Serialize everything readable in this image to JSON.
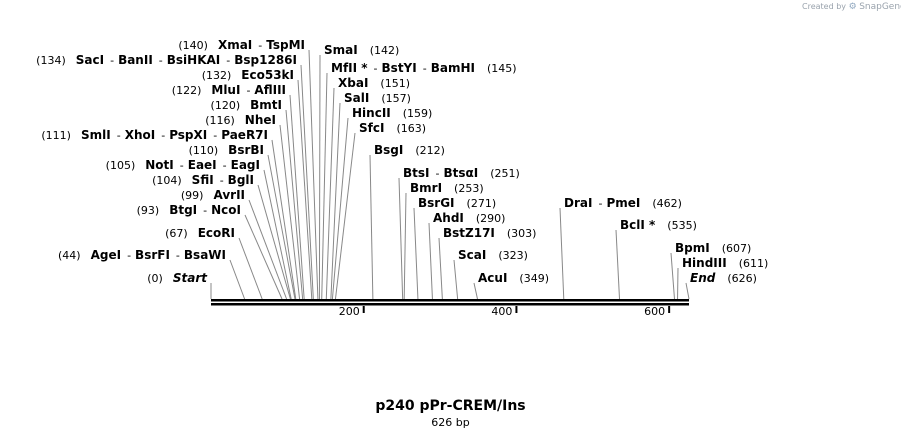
{
  "credit": {
    "prefix": "Created by",
    "logo_icon": "snapgene-logo-icon",
    "brand": "SnapGene"
  },
  "title": "p240 pPr-CREM/Ins",
  "subtitle": "626 bp",
  "sequence_length": 626,
  "axis": {
    "ticks": [
      200,
      400,
      600
    ]
  },
  "sites": [
    {
      "pos": 0,
      "pos_label": "(0)",
      "names": [
        "Start"
      ],
      "italic": true
    },
    {
      "pos": 44,
      "pos_label": "(44)",
      "names": [
        "AgeI",
        "BsrFI",
        "BsaWI"
      ]
    },
    {
      "pos": 67,
      "pos_label": "(67)",
      "names": [
        "EcoRI"
      ]
    },
    {
      "pos": 93,
      "pos_label": "(93)",
      "names": [
        "BtgI",
        "NcoI"
      ]
    },
    {
      "pos": 99,
      "pos_label": "(99)",
      "names": [
        "AvrII"
      ]
    },
    {
      "pos": 104,
      "pos_label": "(104)",
      "names": [
        "SfiI",
        "BglI"
      ]
    },
    {
      "pos": 105,
      "pos_label": "(105)",
      "names": [
        "NotI",
        "EaeI",
        "EagI"
      ]
    },
    {
      "pos": 110,
      "pos_label": "(110)",
      "names": [
        "BsrBI"
      ]
    },
    {
      "pos": 111,
      "pos_label": "(111)",
      "names": [
        "SmlI",
        "XhoI",
        "PspXI",
        "PaeR7I"
      ]
    },
    {
      "pos": 116,
      "pos_label": "(116)",
      "names": [
        "NheI"
      ]
    },
    {
      "pos": 120,
      "pos_label": "(120)",
      "names": [
        "BmtI"
      ]
    },
    {
      "pos": 122,
      "pos_label": "(122)",
      "names": [
        "MluI",
        "AflIII"
      ]
    },
    {
      "pos": 132,
      "pos_label": "(132)",
      "names": [
        "Eco53kI"
      ]
    },
    {
      "pos": 134,
      "pos_label": "(134)",
      "names": [
        "SacI",
        "BanII",
        "BsiHKAI",
        "Bsp1286I"
      ]
    },
    {
      "pos": 140,
      "pos_label": "(140)",
      "names": [
        "XmaI",
        "TspMI"
      ]
    },
    {
      "pos": 142,
      "pos_label": "(142)",
      "names": [
        "SmaI"
      ]
    },
    {
      "pos": 145,
      "pos_label": "(145)",
      "names": [
        "MfII *",
        "BstYI",
        "BamHI"
      ]
    },
    {
      "pos": 151,
      "pos_label": "(151)",
      "names": [
        "XbaI"
      ]
    },
    {
      "pos": 157,
      "pos_label": "(157)",
      "names": [
        "SalI"
      ]
    },
    {
      "pos": 159,
      "pos_label": "(159)",
      "names": [
        "HincII"
      ]
    },
    {
      "pos": 163,
      "pos_label": "(163)",
      "names": [
        "SfcI"
      ]
    },
    {
      "pos": 212,
      "pos_label": "(212)",
      "names": [
        "BsgI"
      ]
    },
    {
      "pos": 251,
      "pos_label": "(251)",
      "names": [
        "BtsI",
        "BtsαI"
      ]
    },
    {
      "pos": 253,
      "pos_label": "(253)",
      "names": [
        "BmrI"
      ]
    },
    {
      "pos": 271,
      "pos_label": "(271)",
      "names": [
        "BsrGI"
      ]
    },
    {
      "pos": 290,
      "pos_label": "(290)",
      "names": [
        "AhdI"
      ]
    },
    {
      "pos": 303,
      "pos_label": "(303)",
      "names": [
        "BstZ17I"
      ]
    },
    {
      "pos": 323,
      "pos_label": "(323)",
      "names": [
        "ScaI"
      ]
    },
    {
      "pos": 349,
      "pos_label": "(349)",
      "names": [
        "AcuI"
      ]
    },
    {
      "pos": 462,
      "pos_label": "(462)",
      "names": [
        "DraI",
        "PmeI"
      ]
    },
    {
      "pos": 535,
      "pos_label": "(535)",
      "names": [
        "BclI *"
      ]
    },
    {
      "pos": 607,
      "pos_label": "(607)",
      "names": [
        "BpmI"
      ]
    },
    {
      "pos": 611,
      "pos_label": "(611)",
      "names": [
        "HindIII"
      ]
    },
    {
      "pos": 626,
      "pos_label": "(626)",
      "names": [
        "End"
      ],
      "italic": true
    }
  ]
}
